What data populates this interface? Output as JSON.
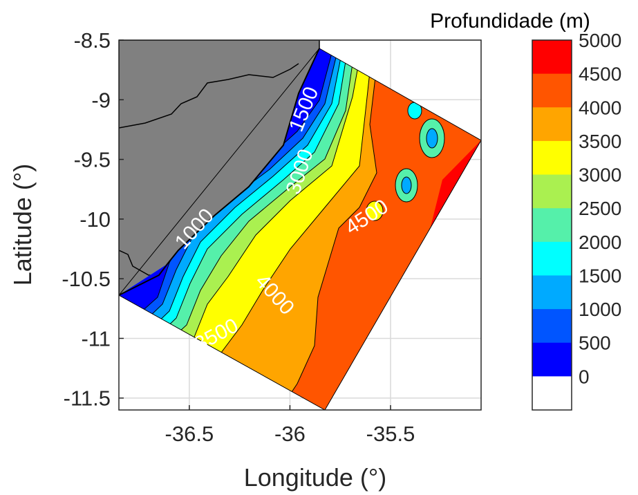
{
  "map": {
    "x_axis_title": "Longitude (°)",
    "y_axis_title": "Latitude (°)",
    "x_ticks": [
      {
        "value": -36.5,
        "label": "-36.5"
      },
      {
        "value": -36,
        "label": "-36"
      },
      {
        "value": -35.5,
        "label": "-35.5"
      }
    ],
    "y_ticks": [
      {
        "value": -8.5,
        "label": "-8.5"
      },
      {
        "value": -9,
        "label": "-9"
      },
      {
        "value": -9.5,
        "label": "-9.5"
      },
      {
        "value": -10,
        "label": "-10"
      },
      {
        "value": -10.5,
        "label": "-10.5"
      },
      {
        "value": -11,
        "label": "-11"
      },
      {
        "value": -11.5,
        "label": "-11.5"
      }
    ],
    "xlim": [
      -36.85,
      -35.05
    ],
    "ylim": [
      -11.6,
      -8.5
    ],
    "grid": true,
    "land_color": "#808080",
    "contour_labels": [
      {
        "text": "1000",
        "lon": -36.45,
        "lat": -10.12,
        "angle": -48
      },
      {
        "text": "1500",
        "lon": -35.9,
        "lat": -9.1,
        "angle": -68
      },
      {
        "text": "3000",
        "lon": -35.92,
        "lat": -9.62,
        "angle": -72
      },
      {
        "text": "3500",
        "lon": -36.35,
        "lat": -11.02,
        "angle": -28
      },
      {
        "text": "4000",
        "lon": -36.1,
        "lat": -10.67,
        "angle": 48
      },
      {
        "text": "4500",
        "lon": -35.6,
        "lat": -10.03,
        "angle": -33
      }
    ]
  },
  "colorbar": {
    "title": "Profundidade (m)",
    "levels": [
      {
        "label": "5000",
        "color": "#ff0000"
      },
      {
        "label": "4500",
        "color": "#ff5500"
      },
      {
        "label": "4000",
        "color": "#ffa500"
      },
      {
        "label": "3500",
        "color": "#ffff00"
      },
      {
        "label": "3000",
        "color": "#aaf050"
      },
      {
        "label": "2500",
        "color": "#55f0aa"
      },
      {
        "label": "2000",
        "color": "#00ffff"
      },
      {
        "label": "1500",
        "color": "#00aaff"
      },
      {
        "label": "1000",
        "color": "#0055ff"
      },
      {
        "label": "500",
        "color": "#0000ff"
      },
      {
        "label": "0",
        "color": "#ffffff"
      }
    ]
  }
}
